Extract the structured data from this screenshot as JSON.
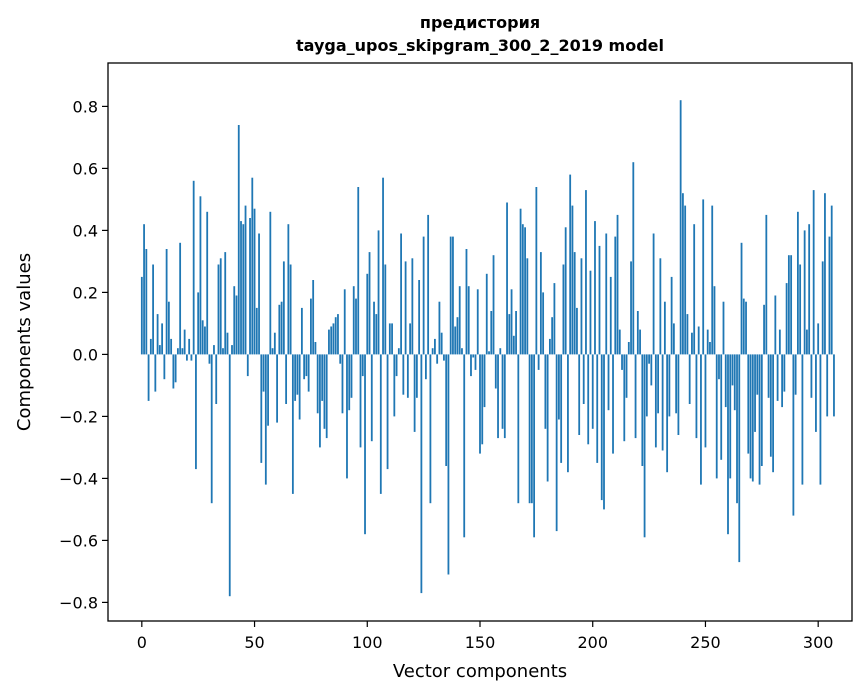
{
  "chart_data": {
    "type": "bar",
    "title_line1": "предистория",
    "title_line2": "tayga_upos_skipgram_300_2_2019 model",
    "xlabel": "Vector components",
    "ylabel": "Components values",
    "xlim": [
      -15,
      315
    ],
    "ylim": [
      -0.86,
      0.94
    ],
    "xticks": [
      0,
      50,
      100,
      150,
      200,
      250,
      300
    ],
    "xtick_labels": [
      "0",
      "50",
      "100",
      "150",
      "200",
      "250",
      "300"
    ],
    "yticks": [
      -0.8,
      -0.6,
      -0.4,
      -0.2,
      0.0,
      0.2,
      0.4,
      0.6,
      0.8
    ],
    "ytick_labels": [
      "−0.8",
      "−0.6",
      "−0.4",
      "−0.2",
      "0.0",
      "0.2",
      "0.4",
      "0.6",
      "0.8"
    ],
    "bar_color": "#1f77b4",
    "values": [
      0.25,
      0.42,
      0.34,
      -0.15,
      0.05,
      0.29,
      -0.12,
      0.13,
      0.03,
      0.1,
      -0.08,
      0.34,
      0.17,
      0.05,
      -0.11,
      -0.09,
      0.02,
      0.36,
      0.02,
      0.08,
      -0.02,
      0.05,
      -0.02,
      0.56,
      -0.37,
      0.2,
      0.51,
      0.11,
      0.09,
      0.46,
      -0.03,
      -0.48,
      0.03,
      -0.16,
      0.29,
      0.31,
      0.02,
      0.33,
      0.07,
      -0.78,
      0.03,
      0.22,
      0.19,
      0.74,
      0.43,
      0.42,
      0.48,
      -0.07,
      0.44,
      0.57,
      0.47,
      0.15,
      0.39,
      -0.35,
      -0.12,
      -0.42,
      -0.23,
      0.46,
      0.02,
      0.07,
      -0.22,
      0.16,
      0.17,
      0.3,
      -0.16,
      0.42,
      0.29,
      -0.45,
      -0.15,
      -0.13,
      -0.21,
      0.15,
      -0.08,
      -0.07,
      -0.12,
      0.18,
      0.24,
      0.04,
      -0.19,
      -0.3,
      -0.15,
      -0.24,
      -0.27,
      0.08,
      0.09,
      0.1,
      0.12,
      0.13,
      -0.03,
      -0.19,
      0.21,
      -0.4,
      -0.18,
      -0.14,
      0.22,
      0.18,
      0.54,
      -0.3,
      -0.07,
      -0.58,
      0.26,
      0.33,
      -0.28,
      0.17,
      0.13,
      0.4,
      -0.45,
      0.57,
      0.29,
      -0.37,
      0.1,
      0.1,
      -0.2,
      -0.07,
      0.02,
      0.39,
      -0.13,
      0.3,
      -0.14,
      0.1,
      0.31,
      -0.25,
      -0.14,
      0.24,
      -0.77,
      0.38,
      -0.08,
      0.45,
      -0.48,
      0.02,
      0.05,
      -0.03,
      0.17,
      0.07,
      -0.02,
      -0.36,
      -0.71,
      0.38,
      0.38,
      0.09,
      0.12,
      0.22,
      0.02,
      -0.59,
      0.34,
      0.22,
      -0.07,
      -0.01,
      -0.05,
      0.21,
      -0.32,
      -0.29,
      -0.17,
      0.26,
      0.01,
      0.14,
      0.32,
      -0.11,
      -0.27,
      0.02,
      -0.24,
      -0.27,
      0.49,
      0.13,
      0.21,
      0.06,
      0.14,
      -0.48,
      0.47,
      0.42,
      0.41,
      0.31,
      -0.48,
      -0.48,
      -0.59,
      0.54,
      -0.05,
      0.33,
      0.2,
      -0.24,
      -0.41,
      0.05,
      0.12,
      0.23,
      -0.57,
      -0.21,
      -0.35,
      0.29,
      0.41,
      -0.38,
      0.58,
      0.48,
      0.33,
      0.15,
      -0.26,
      0.31,
      -0.16,
      0.53,
      -0.29,
      0.27,
      -0.24,
      0.43,
      -0.35,
      0.35,
      -0.47,
      -0.5,
      0.39,
      -0.18,
      0.25,
      -0.32,
      0.38,
      0.45,
      0.08,
      -0.05,
      -0.28,
      -0.14,
      0.04,
      0.3,
      0.62,
      -0.27,
      0.14,
      0.08,
      -0.36,
      -0.59,
      -0.2,
      -0.03,
      -0.1,
      0.39,
      -0.3,
      -0.19,
      0.31,
      -0.31,
      0.17,
      -0.38,
      -0.2,
      0.25,
      0.1,
      -0.19,
      -0.26,
      0.82,
      0.52,
      0.48,
      0.13,
      -0.16,
      0.07,
      0.42,
      -0.27,
      0.09,
      -0.42,
      0.5,
      -0.3,
      0.08,
      0.04,
      0.48,
      0.22,
      -0.4,
      -0.08,
      -0.34,
      0.17,
      -0.17,
      -0.58,
      -0.4,
      -0.1,
      -0.18,
      -0.48,
      -0.67,
      0.36,
      0.18,
      0.17,
      -0.32,
      -0.4,
      -0.41,
      -0.25,
      -0.13,
      -0.42,
      -0.36,
      0.16,
      0.45,
      -0.14,
      -0.33,
      -0.38,
      0.19,
      -0.15,
      0.08,
      -0.17,
      -0.12,
      0.23,
      0.32,
      0.32,
      -0.52,
      -0.13,
      0.46,
      0.29,
      -0.42,
      0.4,
      0.08,
      0.42,
      -0.14,
      0.53,
      -0.25,
      0.1,
      -0.42,
      0.3,
      0.52,
      -0.2,
      0.38,
      0.48,
      -0.2
    ]
  }
}
